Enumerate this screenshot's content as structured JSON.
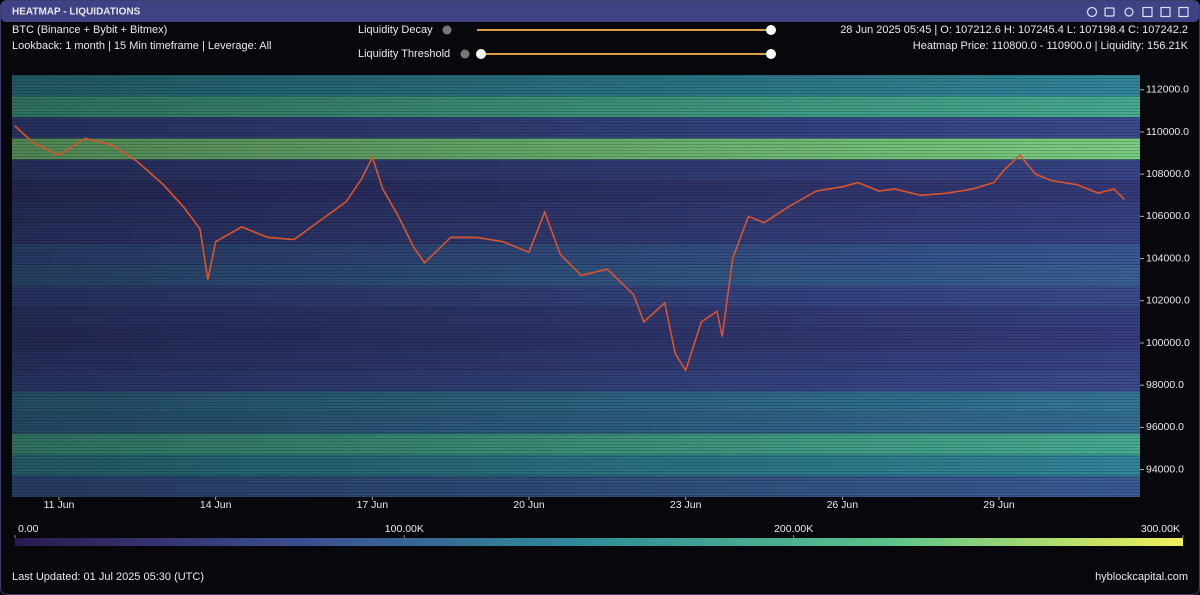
{
  "header": {
    "title": "HEATMAP - LIQUIDATIONS",
    "lookback": "Lookback: 1 month | 15 Min timeframe | Leverage: All",
    "ohlc": "28 Jun 2025 05:45 | O: 107212.6 H: 107245.4 L: 107198.4 C: 107242.2",
    "hover": "Heatmap Price: 110800.0 - 110900.0 | Liquidity: 156.21K"
  },
  "controls": {
    "decay": "Liquidity Decay",
    "threshold": "Liquidity Threshold"
  },
  "footer": {
    "updated": "Last Updated: 01 Jul 2025 05:30 (UTC)",
    "brand": "hyblockcapital.com"
  },
  "chart_data": {
    "type": "heatmap",
    "xlim": [
      10.1,
      31.7
    ],
    "xticks": [
      {
        "value": 11,
        "label": "11 Jun"
      },
      {
        "value": 14,
        "label": "14 Jun"
      },
      {
        "value": 17,
        "label": "17 Jun"
      },
      {
        "value": 20,
        "label": "20 Jun"
      },
      {
        "value": 23,
        "label": "23 Jun"
      },
      {
        "value": 26,
        "label": "26 Jun"
      },
      {
        "value": 29,
        "label": "29 Jun"
      }
    ],
    "ylim": [
      92700,
      112700
    ],
    "yticks": [
      {
        "value": 94000,
        "label": "94000.0"
      },
      {
        "value": 96000,
        "label": "96000.0"
      },
      {
        "value": 98000,
        "label": "98000.0"
      },
      {
        "value": 100000,
        "label": "100000.0"
      },
      {
        "value": 102000,
        "label": "102000.0"
      },
      {
        "value": 104000,
        "label": "104000.0"
      },
      {
        "value": 106000,
        "label": "106000.0"
      },
      {
        "value": 108000,
        "label": "108000.0"
      },
      {
        "value": 110000,
        "label": "110000.0"
      },
      {
        "value": 112000,
        "label": "112000.0"
      }
    ],
    "y_bins": [
      92700,
      93700,
      94700,
      95700,
      96700,
      97700,
      98700,
      99700,
      100700,
      101700,
      102700,
      103700,
      104700,
      105700,
      106700,
      107700,
      108700,
      109700,
      110700,
      111700,
      112700
    ],
    "values": [
      90000,
      140000,
      190000,
      110000,
      120000,
      70000,
      60000,
      50000,
      55000,
      70000,
      95000,
      85000,
      60000,
      55000,
      45000,
      60000,
      240000,
      70000,
      190000,
      140000
    ],
    "colorscale": [
      "#2b1a4f",
      "#3b4f92",
      "#2f8f99",
      "#5cc38a",
      "#f1ef58"
    ],
    "colorbar": {
      "lim": [
        0,
        300000
      ],
      "ticks": [
        {
          "value": 0,
          "label": "0.00"
        },
        {
          "value": 100000,
          "label": "100.00K"
        },
        {
          "value": 200000,
          "label": "200.00K"
        },
        {
          "value": 300000,
          "label": "300.00K"
        }
      ]
    },
    "series": [
      {
        "name": "BTC (Binance + Bybit + Bitmex)",
        "color": "#d9542c",
        "x": [
          10.15,
          10.5,
          11.0,
          11.5,
          12.0,
          12.5,
          13.0,
          13.4,
          13.7,
          13.85,
          14.0,
          14.5,
          15.0,
          15.5,
          16.0,
          16.5,
          16.8,
          17.0,
          17.2,
          17.5,
          17.8,
          18.0,
          18.5,
          19.0,
          19.5,
          20.0,
          20.3,
          20.6,
          21.0,
          21.5,
          22.0,
          22.2,
          22.6,
          22.8,
          23.0,
          23.3,
          23.6,
          23.7,
          23.9,
          24.2,
          24.5,
          25.0,
          25.5,
          26.0,
          26.3,
          26.7,
          27.0,
          27.5,
          28.0,
          28.5,
          28.9,
          29.1,
          29.4,
          29.7,
          30.0,
          30.5,
          30.9,
          31.2,
          31.4
        ],
        "values": [
          110300,
          109500,
          108900,
          109700,
          109400,
          108600,
          107500,
          106400,
          105400,
          103000,
          104800,
          105500,
          105000,
          104900,
          105800,
          106700,
          107800,
          108800,
          107300,
          106000,
          104500,
          103800,
          105000,
          105000,
          104800,
          104300,
          106200,
          104200,
          103200,
          103500,
          102300,
          101000,
          101900,
          99500,
          98700,
          101000,
          101500,
          100300,
          104000,
          106000,
          105700,
          106500,
          107200,
          107400,
          107600,
          107200,
          107300,
          107000,
          107100,
          107300,
          107600,
          108200,
          108900,
          108000,
          107700,
          107500,
          107100,
          107300,
          106800
        ]
      }
    ]
  }
}
